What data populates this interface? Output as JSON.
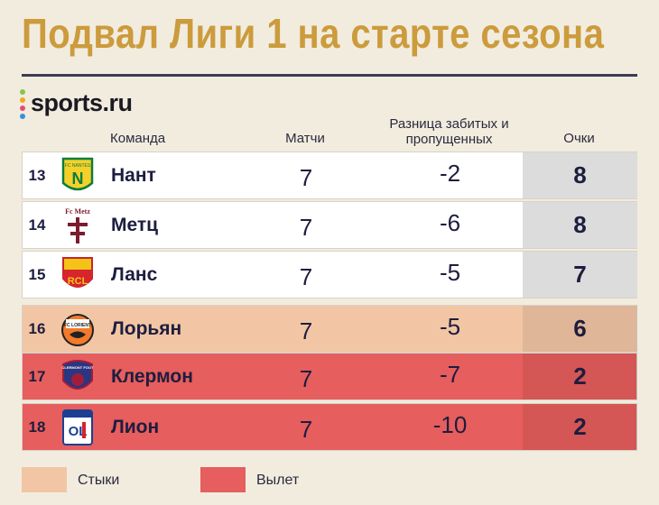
{
  "title": "Подвал Лиги 1 на старте сезона",
  "brand": "sports.ru",
  "colors": {
    "title": "#cc9b3c",
    "playoff": "#f2c6a4",
    "relegation": "#e65e5d",
    "normal_row": "#ffffff",
    "points_cell": "#dcdcdc"
  },
  "chart_data": {
    "type": "table",
    "columns": {
      "team": "Команда",
      "matches": "Матчи",
      "goal_diff": "Разница забитых и пропущенных",
      "points": "Очки"
    },
    "rows": [
      {
        "rank": "13",
        "team": "Нант",
        "logo": "nantes-logo",
        "logo_text": "FC NANTES",
        "matches": "7",
        "goal_diff": "-2",
        "points": "8",
        "zone": "none"
      },
      {
        "rank": "14",
        "team": "Метц",
        "logo": "metz-logo",
        "logo_text": "Fc Metz",
        "matches": "7",
        "goal_diff": "-6",
        "points": "8",
        "zone": "none"
      },
      {
        "rank": "15",
        "team": "Ланс",
        "logo": "lens-logo",
        "logo_text": "RCL",
        "matches": "7",
        "goal_diff": "-5",
        "points": "7",
        "zone": "none"
      },
      {
        "rank": "16",
        "team": "Лорьян",
        "logo": "lorient-logo",
        "logo_text": "FC LORIENT",
        "matches": "7",
        "goal_diff": "-5",
        "points": "6",
        "zone": "playoff"
      },
      {
        "rank": "17",
        "team": "Клермон",
        "logo": "clermont-logo",
        "logo_text": "CLERMONT FOOT",
        "matches": "7",
        "goal_diff": "-7",
        "points": "2",
        "zone": "relegation"
      },
      {
        "rank": "18",
        "team": "Лион",
        "logo": "lyon-logo",
        "logo_text": "OL",
        "matches": "7",
        "goal_diff": "-10",
        "points": "2",
        "zone": "relegation"
      }
    ],
    "legend": [
      {
        "label": "Стыки",
        "zone": "playoff"
      },
      {
        "label": "Вылет",
        "zone": "relegation"
      }
    ]
  }
}
